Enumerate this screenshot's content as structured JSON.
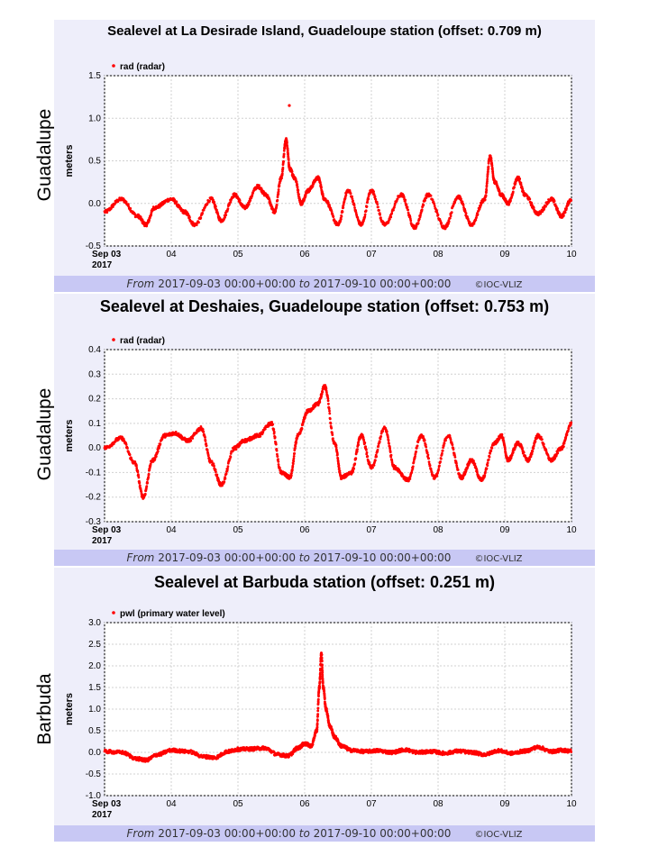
{
  "chart_data": [
    {
      "type": "scatter",
      "station_label": "Guadalupe",
      "title": "Sealevel at La Desirade Island, Guadeloupe station (offset: 0.709 m)",
      "ylabel": "meters",
      "legend": "rad (radar)",
      "legend_position": "top-left",
      "ylim": [
        -0.5,
        1.5
      ],
      "yticks": [
        "1.5",
        "1.0",
        "0.5",
        "0.0",
        "-0.5"
      ],
      "ytick_values": [
        1.5,
        1.0,
        0.5,
        0.0,
        -0.5
      ],
      "xlim": [
        3,
        10
      ],
      "xticks": [
        "Sep 03",
        "04",
        "05",
        "06",
        "07",
        "08",
        "09",
        "10"
      ],
      "xtick_year": "2017",
      "series": [
        {
          "color": "#ff0000",
          "x": [
            3.0,
            3.25,
            3.5,
            3.62,
            3.75,
            4.0,
            4.2,
            4.35,
            4.6,
            4.75,
            4.95,
            5.1,
            5.3,
            5.42,
            5.55,
            5.65,
            5.72,
            5.78,
            5.85,
            5.95,
            6.05,
            6.2,
            6.3,
            6.5,
            6.65,
            6.85,
            7.0,
            7.2,
            7.45,
            7.65,
            7.85,
            8.1,
            8.3,
            8.5,
            8.7,
            8.78,
            8.85,
            8.95,
            9.05,
            9.2,
            9.3,
            9.5,
            9.7,
            9.85,
            10.0
          ],
          "y": [
            -0.1,
            0.05,
            -0.15,
            -0.25,
            -0.05,
            0.05,
            -0.1,
            -0.25,
            0.05,
            -0.2,
            0.1,
            -0.05,
            0.2,
            0.1,
            -0.1,
            0.3,
            0.75,
            0.4,
            0.3,
            0.0,
            0.15,
            0.3,
            0.05,
            -0.25,
            0.15,
            -0.25,
            0.15,
            -0.25,
            0.1,
            -0.28,
            0.1,
            -0.28,
            0.08,
            -0.25,
            0.05,
            0.55,
            0.25,
            0.1,
            0.0,
            0.3,
            0.1,
            -0.12,
            0.05,
            -0.15,
            0.05
          ],
          "outliers": [
            [
              5.77,
              1.15
            ]
          ]
        }
      ]
    },
    {
      "type": "scatter",
      "station_label": "Guadalupe",
      "title": "Sealevel at Deshaies, Guadeloupe station (offset: 0.753 m)",
      "ylabel": "meters",
      "legend": "rad (radar)",
      "legend_position": "top-left",
      "ylim": [
        -0.3,
        0.4
      ],
      "yticks": [
        "0.4",
        "0.3",
        "0.2",
        "0.1",
        "0.0",
        "-0.1",
        "-0.2",
        "-0.3"
      ],
      "ytick_values": [
        0.4,
        0.3,
        0.2,
        0.1,
        0.0,
        -0.1,
        -0.2,
        -0.3
      ],
      "xlim": [
        3,
        10
      ],
      "xticks": [
        "Sep 03",
        "04",
        "05",
        "06",
        "07",
        "08",
        "09",
        "10"
      ],
      "xtick_year": "2017",
      "series": [
        {
          "color": "#ff0000",
          "x": [
            3.0,
            3.25,
            3.45,
            3.58,
            3.72,
            3.9,
            4.05,
            4.25,
            4.45,
            4.6,
            4.75,
            4.95,
            5.1,
            5.3,
            5.5,
            5.65,
            5.78,
            5.9,
            6.05,
            6.2,
            6.3,
            6.45,
            6.55,
            6.7,
            6.85,
            7.0,
            7.2,
            7.35,
            7.55,
            7.75,
            7.95,
            8.15,
            8.35,
            8.5,
            8.65,
            8.85,
            8.95,
            9.05,
            9.2,
            9.35,
            9.5,
            9.7,
            9.85,
            10.0
          ],
          "y": [
            0.0,
            0.04,
            -0.06,
            -0.2,
            -0.05,
            0.05,
            0.06,
            0.03,
            0.08,
            -0.06,
            -0.15,
            0.0,
            0.03,
            0.05,
            0.1,
            -0.1,
            -0.12,
            0.05,
            0.15,
            0.18,
            0.25,
            0.02,
            -0.12,
            -0.1,
            0.05,
            -0.08,
            0.08,
            -0.08,
            -0.13,
            0.05,
            -0.12,
            0.05,
            -0.12,
            -0.05,
            -0.13,
            0.02,
            0.05,
            -0.05,
            0.02,
            -0.05,
            0.05,
            -0.05,
            0.0,
            0.1
          ],
          "outliers": []
        }
      ]
    },
    {
      "type": "scatter",
      "station_label": "Barbuda",
      "title": "Sealevel at Barbuda station (offset: 0.251 m)",
      "ylabel": "meters",
      "legend": "pwl (primary water level)",
      "legend_position": "top-left",
      "ylim": [
        -1.0,
        3.0
      ],
      "yticks": [
        "3.0",
        "2.5",
        "2.0",
        "1.5",
        "1.0",
        "0.5",
        "0.0",
        "-0.5",
        "-1.0"
      ],
      "ytick_values": [
        3.0,
        2.5,
        2.0,
        1.5,
        1.0,
        0.5,
        0.0,
        -0.5,
        -1.0
      ],
      "xlim": [
        3,
        10
      ],
      "xticks": [
        "Sep 03",
        "04",
        "05",
        "06",
        "07",
        "08",
        "09",
        "10"
      ],
      "xtick_year": "2017",
      "series": [
        {
          "color": "#ff0000",
          "x": [
            3.0,
            3.25,
            3.5,
            3.62,
            3.8,
            4.0,
            4.25,
            4.5,
            4.65,
            4.85,
            5.0,
            5.2,
            5.4,
            5.6,
            5.75,
            5.9,
            6.0,
            6.1,
            6.18,
            6.22,
            6.25,
            6.28,
            6.32,
            6.38,
            6.45,
            6.55,
            6.7,
            6.9,
            7.1,
            7.3,
            7.5,
            7.7,
            7.9,
            8.1,
            8.3,
            8.5,
            8.7,
            8.9,
            9.1,
            9.3,
            9.5,
            9.7,
            9.85,
            10.0
          ],
          "y": [
            0.02,
            0.0,
            -0.15,
            -0.18,
            -0.05,
            0.05,
            0.02,
            -0.1,
            -0.12,
            0.02,
            0.07,
            0.08,
            0.1,
            -0.05,
            -0.08,
            0.1,
            0.2,
            0.15,
            0.5,
            1.5,
            2.3,
            1.5,
            1.0,
            0.6,
            0.35,
            0.15,
            0.05,
            0.02,
            0.04,
            0.0,
            0.06,
            0.0,
            0.02,
            -0.02,
            0.03,
            0.0,
            -0.05,
            0.04,
            -0.02,
            0.03,
            0.12,
            0.02,
            0.05,
            0.03
          ],
          "outliers": []
        }
      ]
    }
  ],
  "footer": {
    "from_label": "From",
    "from_value": "2017-09-03 00:00+00:00",
    "to_label": "to",
    "to_value": "2017-09-10 00:00+00:00",
    "copyright": "©IOC-VLIZ"
  }
}
